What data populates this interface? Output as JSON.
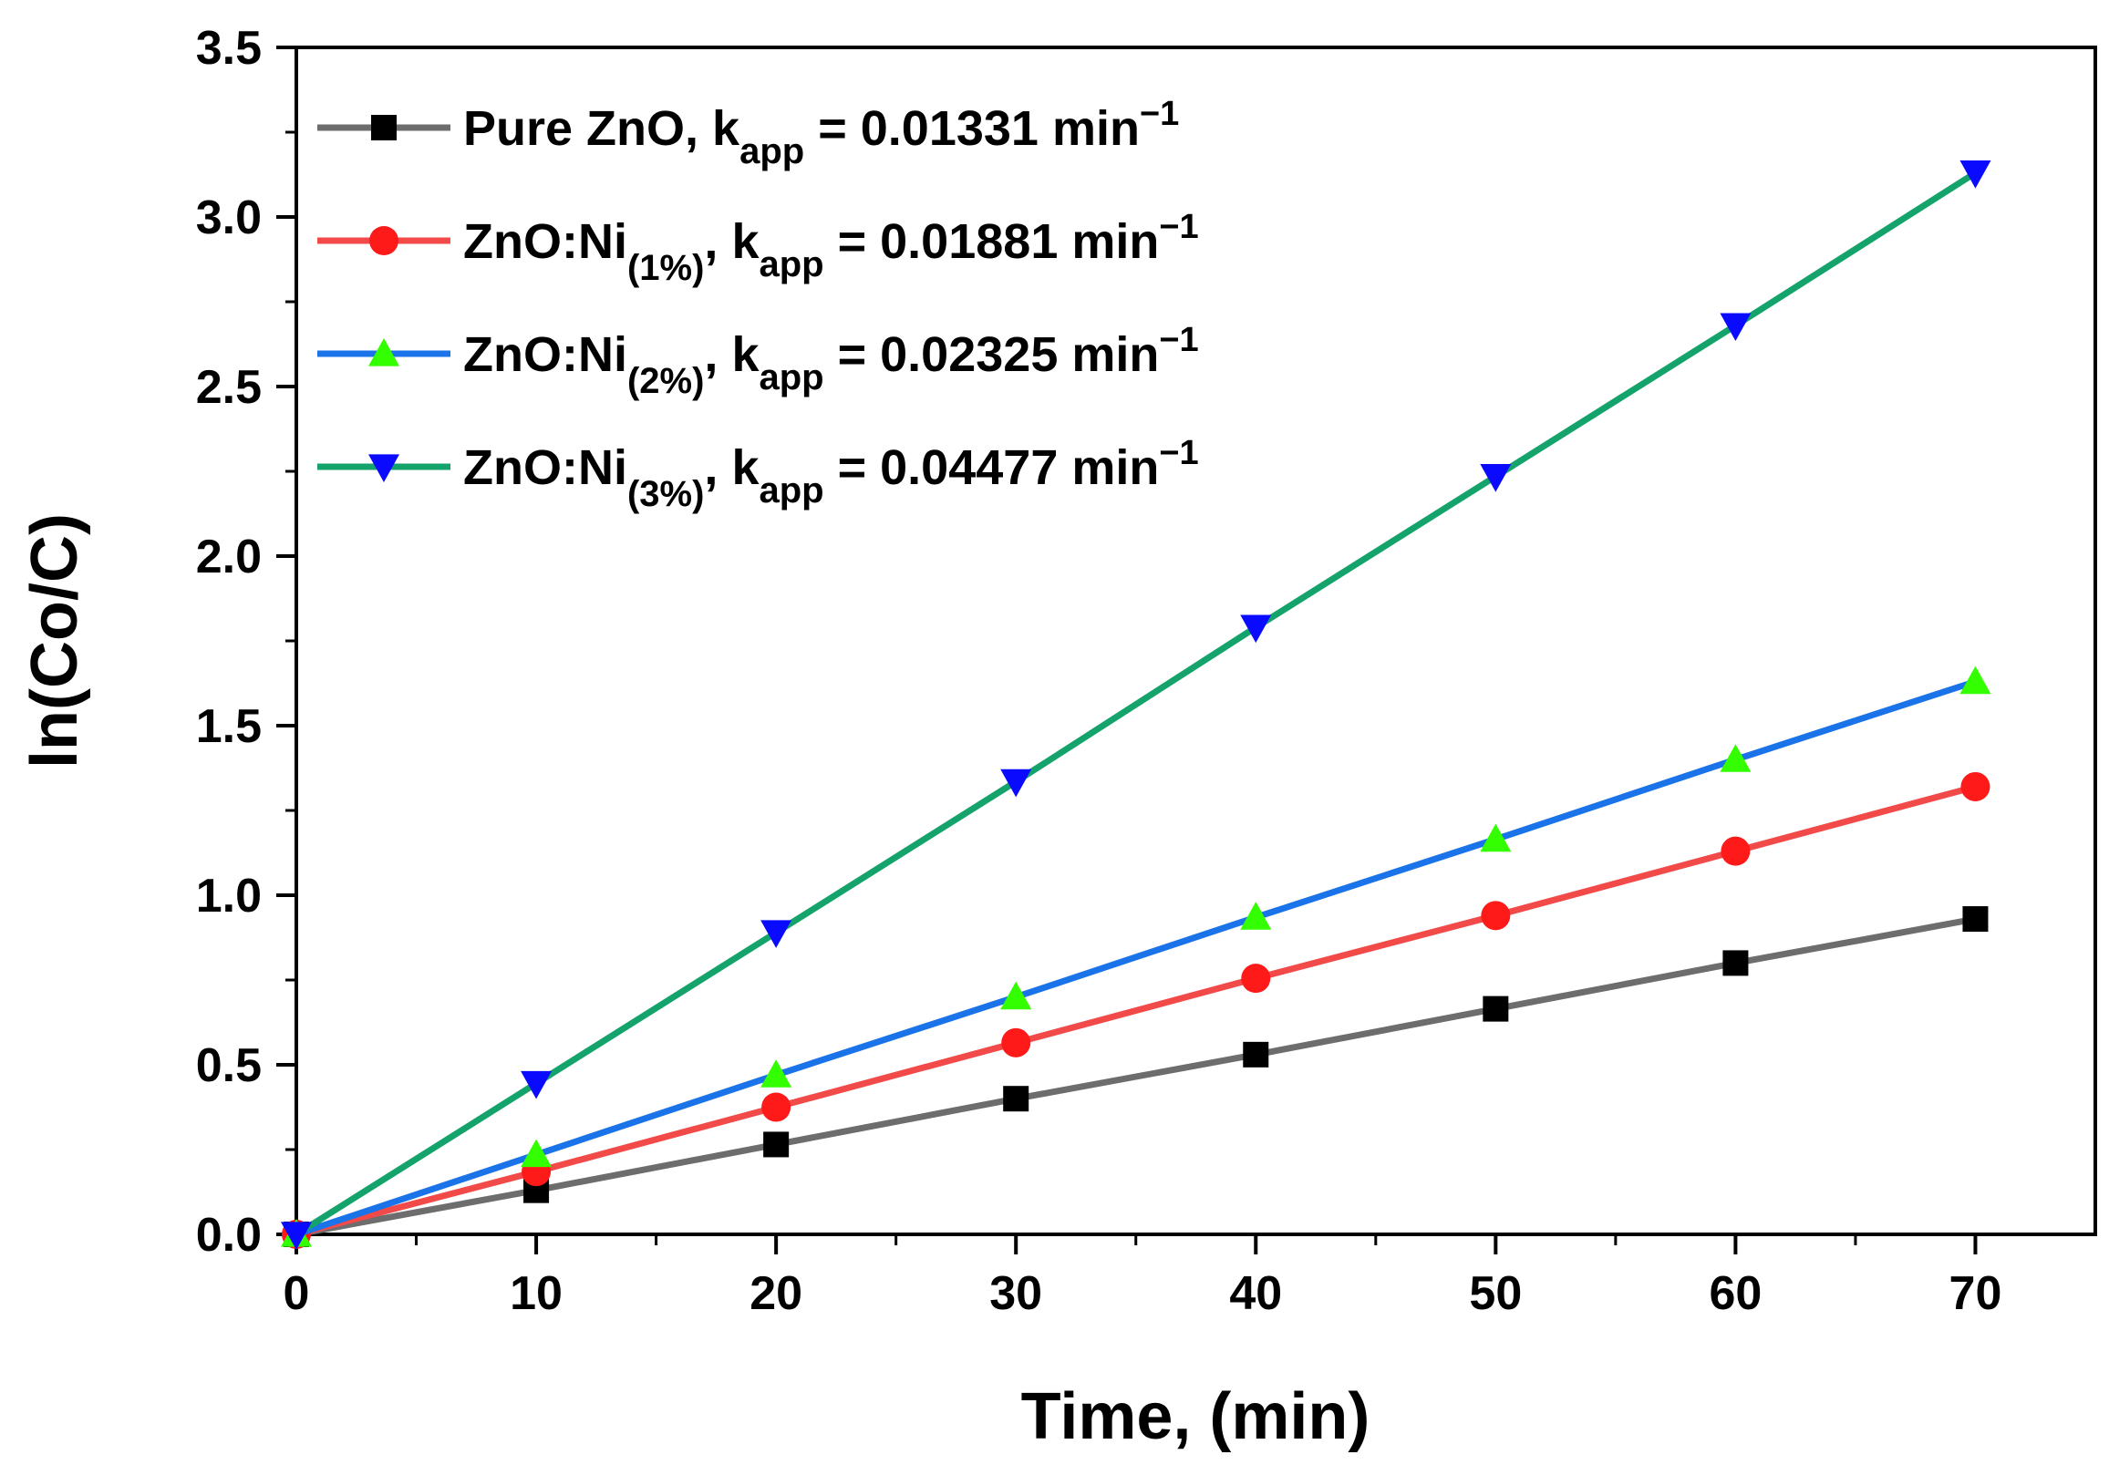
{
  "chart_data": {
    "type": "line",
    "title": "",
    "xlabel": "Time, (min)",
    "ylabel": "ln(Co/C)",
    "xlim": [
      0,
      75
    ],
    "ylim": [
      0,
      3.5
    ],
    "xticks": [
      0,
      10,
      20,
      30,
      40,
      50,
      60,
      70
    ],
    "yticks": [
      0.0,
      0.5,
      1.0,
      1.5,
      2.0,
      2.5,
      3.0,
      3.5
    ],
    "xtick_labels": [
      "0",
      "10",
      "20",
      "30",
      "40",
      "50",
      "60",
      "70"
    ],
    "ytick_labels": [
      "0.0",
      "0.5",
      "1.0",
      "1.5",
      "2.0",
      "2.5",
      "3.0",
      "3.5"
    ],
    "grid": false,
    "legend_position": "top-left",
    "x": [
      0,
      10,
      20,
      30,
      40,
      50,
      60,
      70
    ],
    "series": [
      {
        "name": "Pure ZnO",
        "label_main": "Pure ZnO",
        "label_sub": "",
        "k_text": "k",
        "k_sub": "app",
        "k_value": "= 0.01331 min",
        "k_sup": "−1",
        "marker": "square",
        "line_color": "#6d6d6d",
        "marker_color": "#000000",
        "values": [
          0,
          0.13,
          0.265,
          0.4,
          0.53,
          0.665,
          0.8,
          0.93
        ]
      },
      {
        "name": "ZnO:Ni(1%)",
        "label_main": "ZnO:Ni",
        "label_sub": "(1%)",
        "k_text": "k",
        "k_sub": "app",
        "k_value": "= 0.01881 min",
        "k_sup": "−1",
        "marker": "circle",
        "line_color": "#f24949",
        "marker_color": "#ff1a1a",
        "values": [
          0,
          0.185,
          0.375,
          0.565,
          0.755,
          0.94,
          1.13,
          1.32
        ]
      },
      {
        "name": "ZnO:Ni(2%)",
        "label_main": "ZnO:Ni",
        "label_sub": "(2%)",
        "k_text": "k",
        "k_sub": "app",
        "k_value": "= 0.02325 min",
        "k_sup": "−1",
        "marker": "triangle-up",
        "line_color": "#1a73e8",
        "marker_color": "#33ff00",
        "values": [
          0,
          0.235,
          0.47,
          0.7,
          0.935,
          1.165,
          1.4,
          1.63
        ]
      },
      {
        "name": "ZnO:Ni(3%)",
        "label_main": "ZnO:Ni",
        "label_sub": "(3%)",
        "k_text": "k",
        "k_sub": "app",
        "k_value": "= 0.04477 min",
        "k_sup": "−1",
        "marker": "triangle-down",
        "line_color": "#13a36b",
        "marker_color": "#0a0aff",
        "values": [
          0,
          0.445,
          0.89,
          1.335,
          1.79,
          2.235,
          2.68,
          3.13
        ]
      }
    ]
  }
}
